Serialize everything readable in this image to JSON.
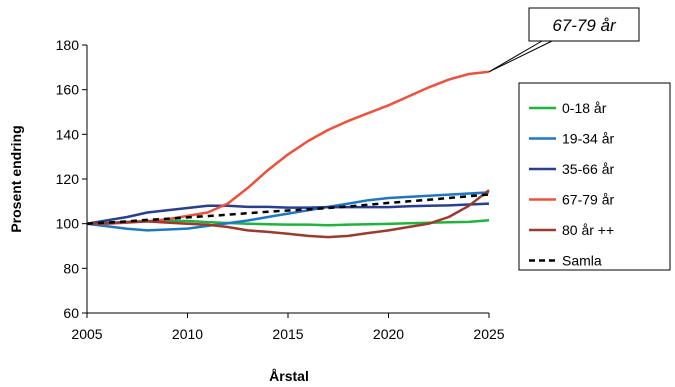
{
  "chart_data": {
    "type": "line",
    "title": "",
    "xlabel": "Årstal",
    "ylabel": "Prosent endring",
    "xlim": [
      2005,
      2025
    ],
    "ylim": [
      60,
      180
    ],
    "xticks": [
      "2005",
      "2010",
      "2015",
      "2020",
      "2025"
    ],
    "yticks": [
      "60",
      "80",
      "100",
      "120",
      "140",
      "160",
      "180"
    ],
    "grid": false,
    "legend_position": "right",
    "x": [
      2005,
      2006,
      2007,
      2008,
      2009,
      2010,
      2011,
      2012,
      2013,
      2014,
      2015,
      2016,
      2017,
      2018,
      2019,
      2020,
      2021,
      2022,
      2023,
      2024,
      2025
    ],
    "series": [
      {
        "name": "0-18 år",
        "color": "#1fb53c",
        "dash": false,
        "values": [
          100,
          100.4,
          100.8,
          101.2,
          101.3,
          101.2,
          100.7,
          100.3,
          100,
          99.7,
          99.6,
          99.6,
          99.3,
          99.6,
          99.7,
          99.9,
          100.2,
          100.4,
          100.6,
          100.8,
          101.5
        ]
      },
      {
        "name": "19-34 år",
        "color": "#1f77c4",
        "dash": false,
        "values": [
          100,
          98.8,
          97.7,
          97,
          97.4,
          97.8,
          99,
          100.2,
          101.4,
          103,
          104.5,
          106,
          107.5,
          109,
          110.5,
          111.5,
          112,
          112.5,
          113,
          113.5,
          114
        ]
      },
      {
        "name": "35-66 år",
        "color": "#283e8f",
        "dash": false,
        "values": [
          100,
          101.5,
          103,
          105,
          106,
          107,
          108,
          108,
          107.5,
          107.5,
          107.2,
          107.2,
          107.4,
          107.4,
          107.4,
          107.4,
          107.8,
          108,
          108.2,
          108.6,
          109
        ]
      },
      {
        "name": "67-79 år",
        "color": "#f0503a",
        "dash": false,
        "values": [
          100,
          100,
          100.5,
          101,
          102,
          103.5,
          105,
          109,
          116,
          124,
          131,
          137,
          142,
          146,
          149.5,
          153,
          157,
          161,
          164.5,
          167,
          168
        ]
      },
      {
        "name": "80 år ++",
        "color": "#9c3a2e",
        "dash": false,
        "values": [
          100,
          100.2,
          100.6,
          101,
          100.5,
          100,
          99.5,
          98.5,
          97,
          96.3,
          95.5,
          94.5,
          94,
          94.5,
          95.8,
          97,
          98.5,
          100,
          103,
          108,
          115
        ]
      },
      {
        "name": "Samla",
        "color": "#000000",
        "dash": true,
        "values": [
          100,
          100.5,
          101,
          101.7,
          102.2,
          102.8,
          103.4,
          104,
          104.7,
          105.3,
          105.9,
          106.4,
          107,
          107.7,
          108.5,
          109.3,
          110,
          110.7,
          111.5,
          112.3,
          113
        ]
      }
    ],
    "annotation": {
      "text": "67-79 år",
      "series": "67-79 år"
    }
  }
}
